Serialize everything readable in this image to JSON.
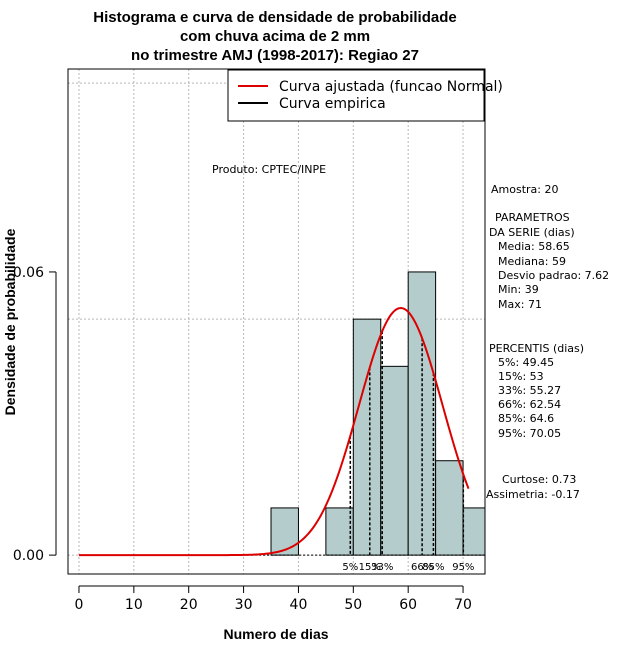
{
  "chart_data": {
    "type": "bar",
    "title_lines": [
      "Histograma e curva de densidade de probabilidade",
      "com chuva acima de 2 mm",
      "no trimestre AMJ (1998-2017): Regiao 27"
    ],
    "xlabel": "Numero de dias",
    "ylabel": "Densidade de probabilidade",
    "xlim": [
      -2,
      74
    ],
    "ylim": [
      -0.004,
      0.103
    ],
    "x_ticks": [
      "0",
      "10",
      "20",
      "30",
      "40",
      "50",
      "60",
      "70"
    ],
    "x_tick_values": [
      0,
      10,
      20,
      30,
      40,
      50,
      60,
      70
    ],
    "y_ticks": [
      "0.00",
      "0.06"
    ],
    "y_tick_values": [
      0.0,
      0.06
    ],
    "grid": true,
    "grid_x": [
      0,
      10,
      20,
      30,
      40,
      50,
      60,
      70
    ],
    "grid_y": [
      0.0,
      0.05,
      0.1
    ],
    "bins": [
      {
        "x0": 35,
        "x1": 40,
        "density": 0.01
      },
      {
        "x0": 40,
        "x1": 45,
        "density": 0.0
      },
      {
        "x0": 45,
        "x1": 50,
        "density": 0.01
      },
      {
        "x0": 50,
        "x1": 55,
        "density": 0.05
      },
      {
        "x0": 55,
        "x1": 60,
        "density": 0.04
      },
      {
        "x0": 60,
        "x1": 65,
        "density": 0.06
      },
      {
        "x0": 65,
        "x1": 70,
        "density": 0.02
      },
      {
        "x0": 70,
        "x1": 75,
        "density": 0.01
      }
    ],
    "bar_color": "#b5cccc",
    "curve_color": "#dd0000",
    "normal_curve": {
      "mean": 58.65,
      "sd": 7.62,
      "x_from": 0,
      "x_to": 71
    },
    "percentile_lines": [
      {
        "label": "5%",
        "x": 49.45
      },
      {
        "label": "15%",
        "x": 53
      },
      {
        "label": "33%",
        "x": 55.27
      },
      {
        "label": "66%",
        "x": 62.54
      },
      {
        "label": "85%",
        "x": 64.6
      },
      {
        "label": "95%",
        "x": 70.05
      }
    ],
    "legend_position": "top-right",
    "legend": [
      {
        "label": "Curva ajustada (funcao Normal)",
        "color": "#dd0000"
      },
      {
        "label": "Curva empirica",
        "color": "#000000"
      }
    ],
    "annotation": "Produto: CPTEC/INPE"
  },
  "stats": {
    "amostra": "Amostra: 20",
    "param_header_1": "PARAMETROS",
    "param_header_2": "DA SERIE (dias)",
    "media": "Media: 58.65",
    "mediana": "Mediana: 59",
    "desvio": "Desvio padrao: 7.62",
    "min": "Min: 39",
    "max": "Max: 71",
    "percentis_header": "PERCENTIS (dias)",
    "p5": "5%: 49.45",
    "p15": "15%: 53",
    "p33": "33%: 55.27",
    "p66": "66%: 62.54",
    "p85": "85%: 64.6",
    "p95": "95%: 70.05",
    "curtose": "Curtose: 0.73",
    "assimetria": "Assimetria: -0.17"
  }
}
